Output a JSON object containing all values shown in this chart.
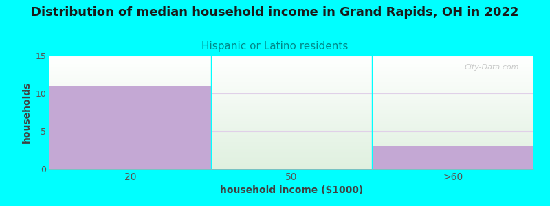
{
  "title": "Distribution of median household income in Grand Rapids, OH in 2022",
  "subtitle": "Hispanic or Latino residents",
  "subtitle_color": "#008888",
  "title_fontsize": 13,
  "subtitle_fontsize": 11,
  "background_color": "#00ffff",
  "plot_bg_color_top": "#ffffff",
  "plot_bg_color_bottom": "#dff0df",
  "bar_color": "#c4a8d4",
  "bar_edge_color": "#b090b8",
  "categories": [
    "20",
    "50",
    ">60"
  ],
  "values": [
    11,
    0,
    3
  ],
  "xlabel": "household income ($1000)",
  "ylabel": "households",
  "ylim": [
    0,
    15
  ],
  "yticks": [
    0,
    5,
    10,
    15
  ],
  "watermark": "City-Data.com",
  "grid_color": "#e0d0e8",
  "bar_width": 1.0,
  "x_positions": [
    0,
    1,
    2
  ]
}
